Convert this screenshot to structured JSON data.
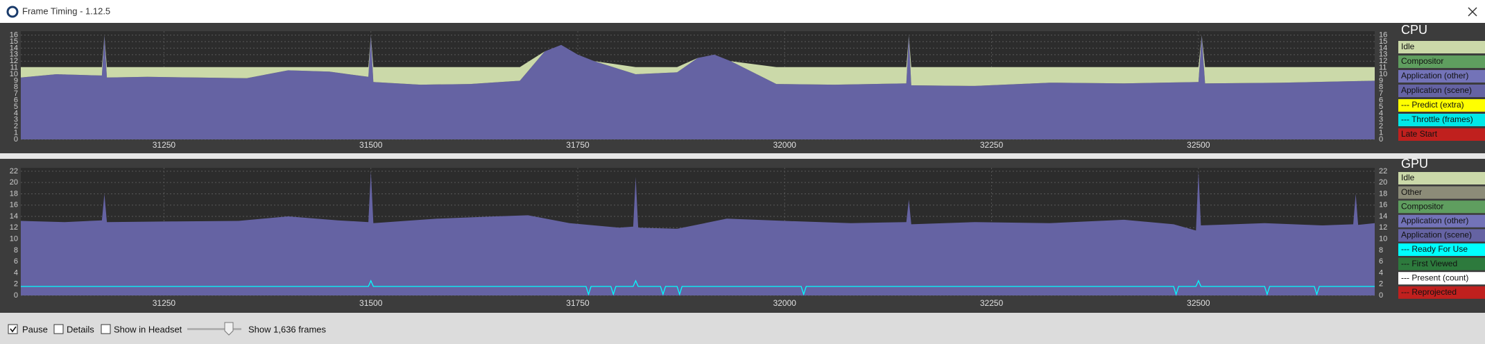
{
  "window": {
    "title": "Frame Timing - 1.12.5"
  },
  "charts": [
    {
      "type": "area",
      "title": "CPU",
      "grid": true,
      "xlim": [
        31077,
        32713
      ],
      "xticks": [
        31250,
        31500,
        31750,
        32000,
        32250,
        32500
      ],
      "ylim": [
        0,
        16.6
      ],
      "yticks": [
        0,
        1,
        2,
        3,
        4,
        5,
        6,
        7,
        8,
        9,
        10,
        11,
        12,
        13,
        14,
        15,
        16
      ],
      "x": [
        31077,
        31120,
        31175,
        31178,
        31181,
        31230,
        31290,
        31350,
        31400,
        31450,
        31497,
        31500,
        31503,
        31560,
        31620,
        31680,
        31710,
        31730,
        31750,
        31770,
        31820,
        31870,
        31895,
        31915,
        31935,
        31990,
        32060,
        32147,
        32150,
        32153,
        32230,
        32320,
        32410,
        32500,
        32504,
        32508,
        32600,
        32713
      ],
      "series": [
        {
          "name": "Idle",
          "color": "#cbd9a9",
          "style": "area",
          "values": [
            1.6,
            1.1,
            1.3,
            0,
            1.6,
            1.5,
            1.6,
            1.7,
            0.5,
            0.7,
            1.5,
            0,
            2.3,
            2.7,
            2.6,
            2.1,
            0,
            0,
            0,
            0,
            1.1,
            0.8,
            0,
            0,
            0,
            2.6,
            2.7,
            2.5,
            0,
            2.8,
            2.9,
            2.4,
            2.5,
            2.3,
            0,
            2.5,
            2.4,
            2.1
          ]
        },
        {
          "name": "Compositor",
          "color": "#5f9e5f"
        },
        {
          "name": "Application (other)",
          "color": "#7373b8"
        },
        {
          "name": "Application (scene)",
          "color": "#6563a3",
          "style": "area",
          "values": [
            9.5,
            10.0,
            9.8,
            16,
            9.5,
            9.6,
            9.5,
            9.4,
            10.6,
            10.4,
            9.6,
            16,
            8.8,
            8.4,
            8.5,
            9.0,
            13.5,
            14.5,
            13.0,
            12.0,
            10.0,
            10.3,
            12.5,
            13.0,
            12.0,
            8.5,
            8.4,
            8.6,
            16,
            8.3,
            8.2,
            8.7,
            8.6,
            8.8,
            16,
            8.6,
            8.7,
            9.0
          ]
        },
        {
          "name": "--- Predict (extra)",
          "color": "#ffff00"
        },
        {
          "name": "--- Throttle (frames)",
          "color": "#00e8e8"
        },
        {
          "name": "Late Start",
          "color": "#c0201e"
        }
      ]
    },
    {
      "type": "area",
      "title": "GPU",
      "grid": true,
      "xlim": [
        31077,
        32713
      ],
      "xticks": [
        31250,
        31500,
        31750,
        32000,
        32250,
        32500
      ],
      "ylim": [
        0,
        22.6
      ],
      "yticks": [
        0,
        2,
        4,
        6,
        8,
        10,
        12,
        14,
        16,
        18,
        20,
        22
      ],
      "x": [
        31077,
        31130,
        31175,
        31178,
        31181,
        31260,
        31340,
        31400,
        31460,
        31497,
        31500,
        31503,
        31580,
        31650,
        31690,
        31740,
        31800,
        31817,
        31820,
        31823,
        31870,
        31930,
        32000,
        32080,
        32147,
        32150,
        32153,
        32230,
        32320,
        32410,
        32470,
        32497,
        32500,
        32503,
        32580,
        32650,
        32687,
        32690,
        32693,
        32713
      ],
      "series": [
        {
          "name": "Idle",
          "color": "#cbd9a9"
        },
        {
          "name": "Other",
          "color": "#8c8c78"
        },
        {
          "name": "Compositor",
          "color": "#5f9e5f"
        },
        {
          "name": "Application (other)",
          "color": "#7373b8"
        },
        {
          "name": "Application (scene)",
          "color": "#6563a3",
          "style": "area",
          "values": [
            13.2,
            13.0,
            13.3,
            18,
            13.0,
            13.1,
            13.2,
            14.0,
            13.3,
            13.0,
            22,
            12.8,
            13.6,
            14.0,
            14.2,
            12.8,
            12.0,
            12.2,
            21,
            12.0,
            11.8,
            13.6,
            13.2,
            12.8,
            13.0,
            17,
            12.6,
            13.0,
            12.8,
            13.4,
            12.6,
            11.5,
            22,
            12.4,
            12.8,
            12.4,
            12.6,
            18,
            12.5,
            12.8
          ]
        },
        {
          "name": "--- Ready For Use",
          "color": "#00ffff",
          "style": "line",
          "x": [
            31077,
            31497,
            31500,
            31503,
            31760,
            31763,
            31766,
            31790,
            31793,
            31796,
            31817,
            31820,
            31823,
            31850,
            31853,
            31856,
            31870,
            31873,
            31876,
            32020,
            32023,
            32026,
            32470,
            32473,
            32476,
            32497,
            32500,
            32503,
            32580,
            32583,
            32586,
            32640,
            32643,
            32646,
            32713
          ],
          "values": [
            1.6,
            1.6,
            2.6,
            1.6,
            1.6,
            0.2,
            1.6,
            1.6,
            0.2,
            1.6,
            1.6,
            2.6,
            1.6,
            1.6,
            0.2,
            1.6,
            1.6,
            0.2,
            1.6,
            1.6,
            0.2,
            1.6,
            1.6,
            0.2,
            1.6,
            1.6,
            2.6,
            1.6,
            1.6,
            0.2,
            1.6,
            1.6,
            0.2,
            1.6,
            1.6
          ]
        },
        {
          "name": "--- First Viewed",
          "color": "#2d7a3d"
        },
        {
          "name": "--- Present (count)",
          "color": "#ffffff"
        },
        {
          "name": "--- Reprojected",
          "color": "#c0201e"
        }
      ]
    }
  ],
  "controls": {
    "pause": {
      "label": "Pause",
      "checked": true
    },
    "details": {
      "label": "Details",
      "checked": false
    },
    "headset": {
      "label": "Show in Headset",
      "checked": false
    },
    "frames_label": "Show 1,636 frames"
  }
}
